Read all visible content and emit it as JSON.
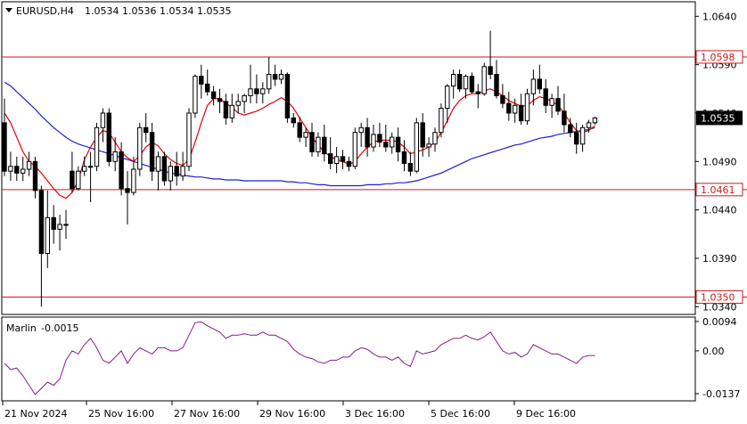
{
  "colors": {
    "background": "#ffffff",
    "grid_border": "#000000",
    "candle": "#000000",
    "ma_fast": "#e8000b",
    "ma_slow": "#1f1fd6",
    "level_line": "#d11a1a",
    "oscillator": "#8b1a8b"
  },
  "header": {
    "symbol": "EURUSD,H4",
    "ohlc": "1.0534 1.0536 1.0534 1.0535",
    "collapse_icon": "triangle-down-icon"
  },
  "chart_data": [
    {
      "type": "candlestick",
      "title": "EURUSD,H4",
      "ylim": [
        1.0332,
        1.0655
      ],
      "y_ticks": [
        "1.0640",
        "1.0590",
        "1.0540",
        "1.0490",
        "1.0440",
        "1.0390",
        "1.0340"
      ],
      "x_ticks": [
        "21 Nov 2024",
        "25 Nov 16:00",
        "27 Nov 16:00",
        "29 Nov 16:00",
        "3 Dec 16:00",
        "5 Dec 16:00",
        "9 Dec 16:00"
      ],
      "current_price": "1.0535",
      "levels": [
        {
          "value": 1.0598,
          "label": "1.0598"
        },
        {
          "value": 1.0461,
          "label": "1.0461"
        },
        {
          "value": 1.035,
          "label": "1.0350"
        }
      ],
      "candles": [
        [
          1.053,
          1.0555,
          1.0475,
          1.048
        ],
        [
          1.048,
          1.05,
          1.047,
          1.0485
        ],
        [
          1.0485,
          1.0495,
          1.047,
          1.0478
        ],
        [
          1.0478,
          1.0495,
          1.047,
          1.0482
        ],
        [
          1.0482,
          1.05,
          1.0475,
          1.049
        ],
        [
          1.049,
          1.0495,
          1.0452,
          1.046
        ],
        [
          1.046,
          1.0465,
          1.034,
          1.0395
        ],
        [
          1.0395,
          1.046,
          1.038,
          1.0432
        ],
        [
          1.0432,
          1.0445,
          1.0405,
          1.042
        ],
        [
          1.042,
          1.0435,
          1.0398,
          1.0425
        ],
        [
          1.0425,
          1.044,
          1.041,
          1.0425
        ],
        [
          1.048,
          1.05,
          1.0458,
          1.0462
        ],
        [
          1.0462,
          1.0485,
          1.046,
          1.048
        ],
        [
          1.048,
          1.0495,
          1.0475,
          1.0485
        ],
        [
          1.0485,
          1.05,
          1.0448,
          1.0485
        ],
        [
          1.0485,
          1.053,
          1.048,
          1.0525
        ],
        [
          1.0525,
          1.0545,
          1.051,
          1.054
        ],
        [
          1.054,
          1.0545,
          1.0485,
          1.049
        ],
        [
          1.049,
          1.0515,
          1.048,
          1.05
        ],
        [
          1.05,
          1.051,
          1.0455,
          1.0462
        ],
        [
          1.0462,
          1.048,
          1.0425,
          1.0458
        ],
        [
          1.0458,
          1.0495,
          1.0455,
          1.0482
        ],
        [
          1.0482,
          1.053,
          1.0475,
          1.0525
        ],
        [
          1.0525,
          1.054,
          1.051,
          1.052
        ],
        [
          1.052,
          1.053,
          1.047,
          1.048
        ],
        [
          1.048,
          1.05,
          1.046,
          1.0495
        ],
        [
          1.0495,
          1.05,
          1.0465,
          1.047
        ],
        [
          1.047,
          1.049,
          1.046,
          1.0485
        ],
        [
          1.0485,
          1.05,
          1.0465,
          1.0475
        ],
        [
          1.0475,
          1.05,
          1.047,
          1.0485
        ],
        [
          1.0485,
          1.0545,
          1.048,
          1.054
        ],
        [
          1.054,
          1.058,
          1.0535,
          1.0578
        ],
        [
          1.0578,
          1.059,
          1.0555,
          1.057
        ],
        [
          1.057,
          1.0585,
          1.0558,
          1.0562
        ],
        [
          1.0562,
          1.0568,
          1.0548,
          1.0555
        ],
        [
          1.0555,
          1.0565,
          1.054,
          1.0552
        ],
        [
          1.0552,
          1.056,
          1.0528,
          1.0535
        ],
        [
          1.0535,
          1.056,
          1.053,
          1.0548
        ],
        [
          1.0548,
          1.056,
          1.054,
          1.0552
        ],
        [
          1.0552,
          1.056,
          1.054,
          1.0558
        ],
        [
          1.0558,
          1.059,
          1.055,
          1.0565
        ],
        [
          1.0565,
          1.058,
          1.055,
          1.056
        ],
        [
          1.056,
          1.0572,
          1.055,
          1.0565
        ],
        [
          1.0565,
          1.0598,
          1.056,
          1.058
        ],
        [
          1.058,
          1.059,
          1.0568,
          1.0575
        ],
        [
          1.0575,
          1.0585,
          1.057,
          1.058
        ],
        [
          1.058,
          1.0582,
          1.053,
          1.0535
        ],
        [
          1.0535,
          1.054,
          1.0525,
          1.053
        ],
        [
          1.053,
          1.0536,
          1.051,
          1.0515
        ],
        [
          1.0515,
          1.0525,
          1.0505,
          1.052
        ],
        [
          1.052,
          1.053,
          1.0495,
          1.05
        ],
        [
          1.05,
          1.052,
          1.0495,
          1.0515
        ],
        [
          1.0515,
          1.0528,
          1.049,
          1.0498
        ],
        [
          1.0498,
          1.0515,
          1.0482,
          1.0488
        ],
        [
          1.0488,
          1.0505,
          1.0478,
          1.0495
        ],
        [
          1.0495,
          1.0502,
          1.0482,
          1.049
        ],
        [
          1.049,
          1.0495,
          1.048,
          1.0485
        ],
        [
          1.0485,
          1.0525,
          1.0482,
          1.052
        ],
        [
          1.052,
          1.053,
          1.0505,
          1.0525
        ],
        [
          1.0525,
          1.0535,
          1.0495,
          1.0505
        ],
        [
          1.0505,
          1.0528,
          1.05,
          1.0518
        ],
        [
          1.0518,
          1.053,
          1.0505,
          1.051
        ],
        [
          1.051,
          1.0528,
          1.05,
          1.0505
        ],
        [
          1.0505,
          1.052,
          1.0498,
          1.0515
        ],
        [
          1.0515,
          1.0525,
          1.049,
          1.05
        ],
        [
          1.05,
          1.0512,
          1.048,
          1.0488
        ],
        [
          1.0488,
          1.05,
          1.0475,
          1.048
        ],
        [
          1.048,
          1.0535,
          1.0478,
          1.053
        ],
        [
          1.053,
          1.054,
          1.0495,
          1.0505
        ],
        [
          1.0505,
          1.0515,
          1.0495,
          1.0508
        ],
        [
          1.0508,
          1.0525,
          1.05,
          1.052
        ],
        [
          1.052,
          1.055,
          1.0515,
          1.0545
        ],
        [
          1.0545,
          1.057,
          1.053,
          1.0568
        ],
        [
          1.0568,
          1.0585,
          1.0555,
          1.058
        ],
        [
          1.058,
          1.0585,
          1.0562,
          1.0565
        ],
        [
          1.0565,
          1.058,
          1.0555,
          1.0578
        ],
        [
          1.0578,
          1.0582,
          1.056,
          1.0562
        ],
        [
          1.0562,
          1.057,
          1.0545,
          1.056
        ],
        [
          1.056,
          1.0592,
          1.0558,
          1.0588
        ],
        [
          1.0588,
          1.0625,
          1.0575,
          1.058
        ],
        [
          1.058,
          1.0595,
          1.0555,
          1.0558
        ],
        [
          1.0558,
          1.057,
          1.0545,
          1.055
        ],
        [
          1.055,
          1.0562,
          1.0532,
          1.054
        ],
        [
          1.054,
          1.0555,
          1.053,
          1.0548
        ],
        [
          1.0548,
          1.056,
          1.0528,
          1.0532
        ],
        [
          1.0532,
          1.0565,
          1.0528,
          1.056
        ],
        [
          1.056,
          1.0585,
          1.0548,
          1.0575
        ],
        [
          1.0575,
          1.059,
          1.056,
          1.0565
        ],
        [
          1.0565,
          1.0575,
          1.054,
          1.0548
        ],
        [
          1.0548,
          1.056,
          1.0535,
          1.0555
        ],
        [
          1.0555,
          1.0568,
          1.0538,
          1.0542
        ],
        [
          1.0542,
          1.056,
          1.052,
          1.0528
        ],
        [
          1.0528,
          1.0535,
          1.0515,
          1.052
        ],
        [
          1.052,
          1.053,
          1.0498,
          1.0508
        ],
        [
          1.0508,
          1.0528,
          1.05,
          1.0525
        ],
        [
          1.0525,
          1.0533,
          1.052,
          1.053
        ],
        [
          1.053,
          1.0536,
          1.0528,
          1.0535
        ]
      ],
      "ma_fast": [
        1.054,
        1.053,
        1.0515,
        1.05,
        1.049,
        1.0485,
        1.0478,
        1.047,
        1.0462,
        1.0455,
        1.0452,
        1.0458,
        1.047,
        1.0492,
        1.0505,
        1.0515,
        1.0522,
        1.052,
        1.051,
        1.05,
        1.0494,
        1.049,
        1.0496,
        1.0505,
        1.051,
        1.0506,
        1.0498,
        1.0492,
        1.0488,
        1.0486,
        1.0492,
        1.051,
        1.053,
        1.0548,
        1.0555,
        1.0555,
        1.055,
        1.0546,
        1.054,
        1.0538,
        1.054,
        1.0542,
        1.0545,
        1.0549,
        1.0552,
        1.0556,
        1.0552,
        1.0545,
        1.0535,
        1.0525,
        1.0515,
        1.0507,
        1.05,
        1.0495,
        1.0492,
        1.049,
        1.0487,
        1.049,
        1.0498,
        1.0505,
        1.051,
        1.0512,
        1.0512,
        1.0512,
        1.051,
        1.0505,
        1.0498,
        1.05,
        1.0502,
        1.0505,
        1.051,
        1.052,
        1.0532,
        1.0545,
        1.0553,
        1.0558,
        1.056,
        1.056,
        1.0563,
        1.0565,
        1.0562,
        1.0558,
        1.0553,
        1.055,
        1.0547,
        1.0548,
        1.0553,
        1.0557,
        1.0555,
        1.0552,
        1.0548,
        1.054,
        1.053,
        1.0522,
        1.052,
        1.0522,
        1.0527
      ],
      "ma_slow": [
        1.0572,
        1.0568,
        1.0562,
        1.0556,
        1.055,
        1.0544,
        1.0537,
        1.0531,
        1.0525,
        1.052,
        1.0515,
        1.0511,
        1.0508,
        1.0506,
        1.0504,
        1.0502,
        1.05,
        1.0498,
        1.0496,
        1.0494,
        1.0492,
        1.049,
        1.0488,
        1.0486,
        1.0484,
        1.0482,
        1.048,
        1.0478,
        1.0477,
        1.0476,
        1.0475,
        1.0474,
        1.0474,
        1.0473,
        1.0472,
        1.0472,
        1.0471,
        1.0471,
        1.0471,
        1.047,
        1.047,
        1.047,
        1.047,
        1.047,
        1.047,
        1.047,
        1.0469,
        1.0469,
        1.0468,
        1.0468,
        1.0467,
        1.0466,
        1.0466,
        1.0465,
        1.0465,
        1.0465,
        1.0465,
        1.0465,
        1.0465,
        1.0466,
        1.0466,
        1.0466,
        1.0467,
        1.0467,
        1.0468,
        1.0468,
        1.0469,
        1.047,
        1.0472,
        1.0474,
        1.0476,
        1.0478,
        1.0481,
        1.0484,
        1.0487,
        1.049,
        1.0493,
        1.0495,
        1.0497,
        1.0499,
        1.0501,
        1.0503,
        1.0505,
        1.0507,
        1.0508,
        1.051,
        1.0512,
        1.0514,
        1.0515,
        1.0516,
        1.0518,
        1.0519,
        1.052,
        1.0521,
        1.0522,
        1.0523,
        1.0525
      ]
    },
    {
      "type": "line",
      "title": "Marlin",
      "value_label": "-0.0015",
      "ylim": [
        -0.016,
        0.0108
      ],
      "y_ticks": [
        "0.0094",
        "0.00",
        "-0.0137"
      ],
      "series": [
        {
          "values": [
            -0.004,
            -0.006,
            -0.0055,
            -0.008,
            -0.011,
            -0.014,
            -0.012,
            -0.01,
            -0.011,
            -0.009,
            -0.003,
            0.0,
            -0.001,
            0.002,
            0.004,
            0.001,
            -0.003,
            -0.004,
            -0.002,
            0.0,
            -0.004,
            -0.001,
            0.001,
            0.0,
            -0.001,
            0.001,
            0.001,
            0.0,
            0.0,
            0.001,
            0.005,
            0.009,
            0.0093,
            0.008,
            0.007,
            0.006,
            0.004,
            0.005,
            0.005,
            0.0055,
            0.005,
            0.005,
            0.006,
            0.005,
            0.005,
            0.004,
            0.003,
            0.0005,
            -0.001,
            -0.002,
            -0.0025,
            -0.0035,
            -0.004,
            -0.003,
            -0.003,
            -0.002,
            -0.002,
            0.0,
            0.001,
            0.0005,
            -0.001,
            -0.002,
            -0.002,
            -0.003,
            -0.002,
            -0.004,
            -0.005,
            0.0,
            -0.001,
            -0.0005,
            0.0,
            0.002,
            0.003,
            0.004,
            0.004,
            0.005,
            0.004,
            0.0035,
            0.0045,
            0.006,
            0.003,
            0.0,
            -0.001,
            -0.0005,
            -0.002,
            -0.001,
            0.002,
            0.001,
            0.0,
            -0.001,
            -0.001,
            -0.002,
            -0.003,
            -0.004,
            -0.002,
            -0.0015,
            -0.0015
          ]
        }
      ]
    }
  ]
}
